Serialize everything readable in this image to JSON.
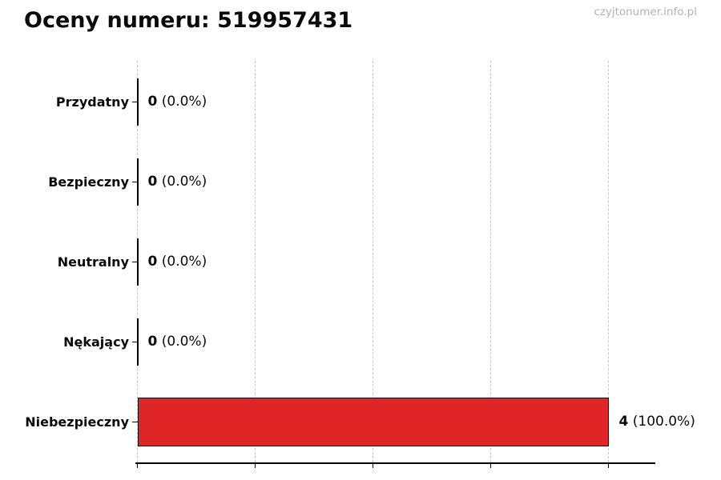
{
  "page": {
    "title": "Oceny numeru: 519957431",
    "watermark": "czyjtonumer.info.pl"
  },
  "colors": {
    "background": "#ffffff",
    "bar_fill": "#df2526",
    "bar_edge": "#000000",
    "grid": "#c9c9c9",
    "axis": "#000000",
    "text": "#0a0a0a",
    "watermark_text": "#b3b3b3"
  },
  "chart_data": {
    "type": "bar",
    "orientation": "horizontal",
    "title": "Oceny numeru: 519957431",
    "categories": [
      "Przydatny",
      "Bezpieczny",
      "Neutralny",
      "Nękający",
      "Niebezpieczny"
    ],
    "values": [
      0,
      0,
      0,
      0,
      4
    ],
    "value_labels": [
      {
        "count": "0",
        "pct": "(0.0%)"
      },
      {
        "count": "0",
        "pct": "(0.0%)"
      },
      {
        "count": "0",
        "pct": "(0.0%)"
      },
      {
        "count": "0",
        "pct": "(0.0%)"
      },
      {
        "count": "4",
        "pct": "(100.0%)"
      }
    ],
    "xlim": [
      0,
      4.4
    ],
    "xticks": [
      0,
      1,
      2,
      3,
      4
    ],
    "xtick_labels_visible": false,
    "grid": "vertical-dashed",
    "legend": "none",
    "xlabel": "",
    "ylabel": ""
  }
}
